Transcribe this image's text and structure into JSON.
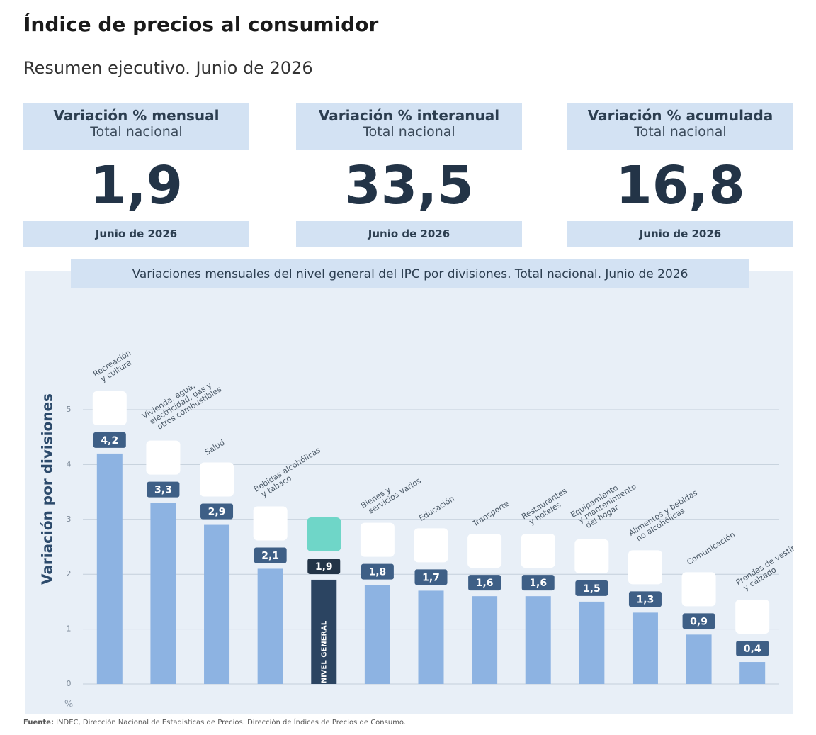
{
  "header": {
    "title": "Índice de precios al consumidor",
    "subtitle": "Resumen ejecutivo. Junio de 2026"
  },
  "cards": [
    {
      "title": "Variación % mensual",
      "subtitle": "Total nacional",
      "value": "1,9",
      "date": "Junio de 2026"
    },
    {
      "title": "Variación % interanual",
      "subtitle": "Total nacional",
      "value": "33,5",
      "date": "Junio de 2026"
    },
    {
      "title": "Variación % acumulada",
      "subtitle": "Total nacional",
      "value": "16,8",
      "date": "Junio de 2026"
    }
  ],
  "chart_data": {
    "type": "bar",
    "title": "Variaciones mensuales del nivel general del IPC por divisiones. Total nacional. Junio de 2026",
    "y_label": "Variación por divisiones",
    "y_unit": "%",
    "categories": [
      "Recreación\ny cultura",
      "Vivienda, agua,\nelectricidad, gas y\notros combustibles",
      "Salud",
      "Bebidas alcohólicas\ny tabaco",
      "NIVEL GENERAL",
      "Bienes y\nservicios varios",
      "Educación",
      "Transporte",
      "Restaurantes\ny hoteles",
      "Equipamiento\ny mantenimiento\ndel hogar",
      "Alimentos y bebidas\nno alcohólicas",
      "Comunicación",
      "Prendas de vestir\ny calzado"
    ],
    "values": [
      4.2,
      3.3,
      2.9,
      2.1,
      1.9,
      1.8,
      1.7,
      1.6,
      1.6,
      1.5,
      1.3,
      0.9,
      0.4
    ],
    "value_labels": [
      "4,2",
      "3,3",
      "2,9",
      "2,1",
      "1,9",
      "1,8",
      "1,7",
      "1,6",
      "1,6",
      "1,5",
      "1,3",
      "0,9",
      "0,4"
    ],
    "colors": [
      "#8db3e2",
      "#8db3e2",
      "#8db3e2",
      "#8db3e2",
      "#2b4461",
      "#8db3e2",
      "#8db3e2",
      "#8db3e2",
      "#8db3e2",
      "#8db3e2",
      "#8db3e2",
      "#8db3e2",
      "#8db3e2"
    ],
    "ylim": [
      0,
      5
    ],
    "yticks": [
      0,
      1,
      2,
      3,
      4,
      5
    ],
    "grid": true
  },
  "source": {
    "label": "Fuente:",
    "text": "INDEC, Dirección Nacional de Estadísticas de Precios. Dirección de Índices de Precios de Consumo."
  }
}
